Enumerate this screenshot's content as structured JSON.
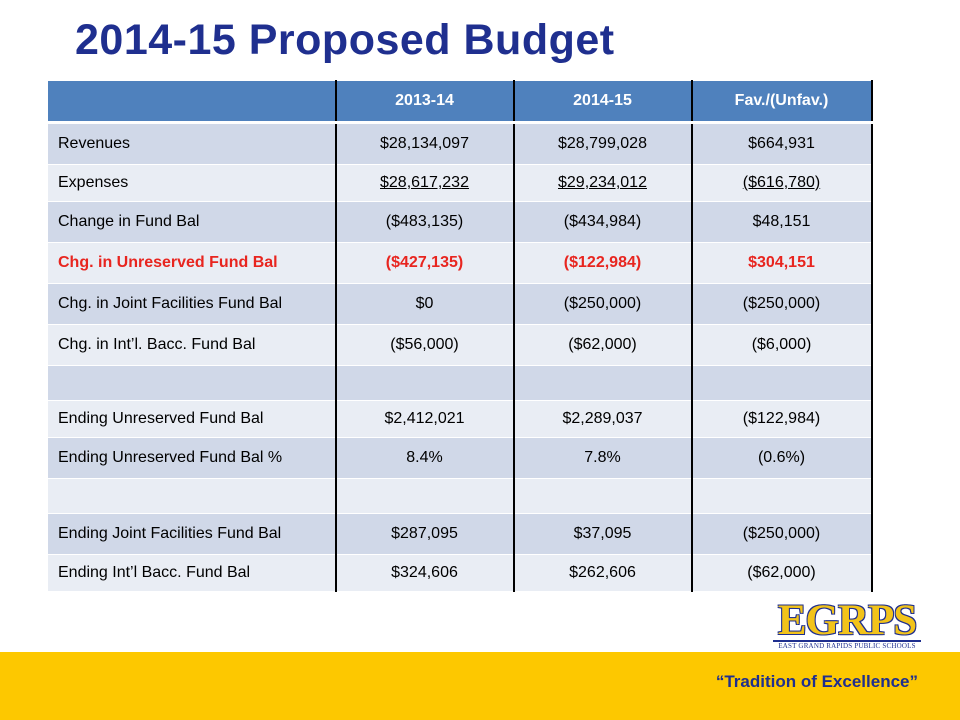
{
  "title": "2014-15 Proposed Budget",
  "colors": {
    "title": "#1f2f8f",
    "header_fill": "#4f81bd",
    "row_dark": "#d0d8e8",
    "row_light": "#e9edf4",
    "highlight_text": "#e8251f",
    "footer_band": "#fdc800"
  },
  "table": {
    "headers": [
      "",
      "2013-14",
      "2014-15",
      "Fav./(Unfav.)"
    ],
    "rows": [
      {
        "label": "Revenues",
        "v1": "$28,134,097",
        "v2": "$28,799,028",
        "v3": "$664,931"
      },
      {
        "label": "Expenses",
        "v1": "$28,617,232",
        "v2": "$29,234,012",
        "v3": "($616,780)"
      },
      {
        "label": "Change in Fund Bal",
        "v1": "($483,135)",
        "v2": "($434,984)",
        "v3": "$48,151"
      },
      {
        "label": "Chg. in Unreserved Fund Bal",
        "v1": "($427,135)",
        "v2": "($122,984)",
        "v3": "$304,151"
      },
      {
        "label": "Chg. in Joint Facilities Fund Bal",
        "v1": "$0",
        "v2": "($250,000)",
        "v3": "($250,000)"
      },
      {
        "label": "Chg. in Int’l. Bacc. Fund Bal",
        "v1": "($56,000)",
        "v2": "($62,000)",
        "v3": "($6,000)"
      },
      {
        "label": "",
        "v1": "",
        "v2": "",
        "v3": ""
      },
      {
        "label": "Ending Unreserved Fund Bal",
        "v1": "$2,412,021",
        "v2": "$2,289,037",
        "v3": "($122,984)"
      },
      {
        "label": "Ending Unreserved Fund Bal %",
        "v1": "8.4%",
        "v2": "7.8%",
        "v3": "(0.6%)"
      },
      {
        "label": "",
        "v1": "",
        "v2": "",
        "v3": ""
      },
      {
        "label": "Ending Joint Facilities Fund Bal",
        "v1": "$287,095",
        "v2": "$37,095",
        "v3": "($250,000)"
      },
      {
        "label": "Ending Int’l Bacc. Fund Bal",
        "v1": "$324,606",
        "v2": "$262,606",
        "v3": "($62,000)"
      }
    ]
  },
  "footer": {
    "tagline": "“Tradition of Excellence”",
    "logo_text": "EGRPS",
    "logo_subtext": "EAST GRAND RAPIDS PUBLIC SCHOOLS"
  }
}
